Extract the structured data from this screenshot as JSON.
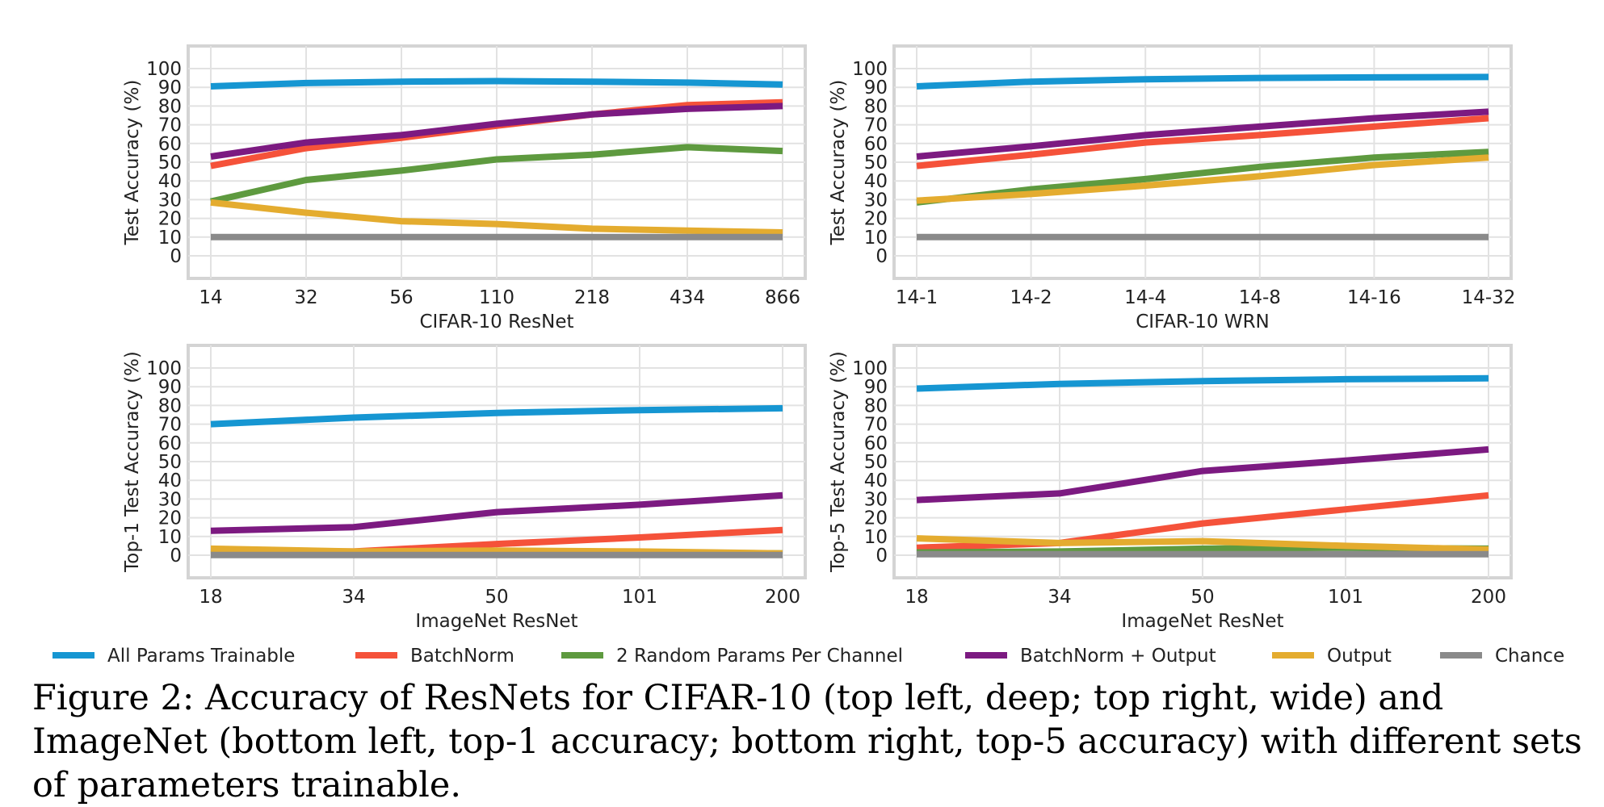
{
  "chart_data": [
    {
      "type": "line",
      "xlabel": "CIFAR-10 ResNet",
      "ylabel": "Test Accuracy (%)",
      "ylim": [
        0,
        100
      ],
      "yticks": [
        0,
        10,
        20,
        30,
        40,
        50,
        60,
        70,
        80,
        90,
        100
      ],
      "categories": [
        "14",
        "32",
        "56",
        "110",
        "218",
        "434",
        "866"
      ],
      "grid": true,
      "series": [
        {
          "name": "All Params Trainable",
          "values": [
            90.5,
            92.3,
            93.0,
            93.3,
            93.0,
            92.5,
            91.5
          ]
        },
        {
          "name": "BatchNorm",
          "values": [
            48.0,
            57.5,
            63.0,
            69.5,
            75.5,
            80.5,
            82.0
          ]
        },
        {
          "name": "2 Random Params Per Channel",
          "values": [
            29.0,
            40.5,
            45.5,
            51.5,
            54.0,
            58.0,
            56.0
          ]
        },
        {
          "name": "BatchNorm + Output",
          "values": [
            53.0,
            60.5,
            64.5,
            70.5,
            75.5,
            78.5,
            80.0
          ]
        },
        {
          "name": "Output",
          "values": [
            28.5,
            23.0,
            18.5,
            17.0,
            14.5,
            13.5,
            12.5
          ]
        },
        {
          "name": "Chance",
          "values": [
            10,
            10,
            10,
            10,
            10,
            10,
            10
          ]
        }
      ]
    },
    {
      "type": "line",
      "xlabel": "CIFAR-10 WRN",
      "ylabel": "Test Accuracy (%)",
      "ylim": [
        0,
        100
      ],
      "yticks": [
        0,
        10,
        20,
        30,
        40,
        50,
        60,
        70,
        80,
        90,
        100
      ],
      "categories": [
        "14-1",
        "14-2",
        "14-4",
        "14-8",
        "14-16",
        "14-32"
      ],
      "grid": true,
      "series": [
        {
          "name": "All Params Trainable",
          "values": [
            90.5,
            93.0,
            94.3,
            95.0,
            95.3,
            95.5
          ]
        },
        {
          "name": "BatchNorm",
          "values": [
            48.0,
            54.0,
            60.5,
            64.5,
            69.0,
            73.5
          ]
        },
        {
          "name": "2 Random Params Per Channel",
          "values": [
            28.5,
            35.5,
            41.0,
            47.5,
            52.5,
            55.5
          ]
        },
        {
          "name": "BatchNorm + Output",
          "values": [
            53.0,
            58.5,
            64.5,
            69.0,
            73.5,
            77.0
          ]
        },
        {
          "name": "Output",
          "values": [
            29.5,
            33.0,
            37.5,
            42.5,
            48.5,
            52.5
          ]
        },
        {
          "name": "Chance",
          "values": [
            10,
            10,
            10,
            10,
            10,
            10
          ]
        }
      ]
    },
    {
      "type": "line",
      "xlabel": "ImageNet ResNet",
      "ylabel": "Top-1 Test Accuracy (%)",
      "ylim": [
        0,
        100
      ],
      "yticks": [
        0,
        10,
        20,
        30,
        40,
        50,
        60,
        70,
        80,
        90,
        100
      ],
      "categories": [
        "18",
        "34",
        "50",
        "101",
        "200"
      ],
      "grid": true,
      "series": [
        {
          "name": "All Params Trainable",
          "values": [
            70.0,
            73.5,
            76.0,
            77.5,
            78.5
          ]
        },
        {
          "name": "BatchNorm",
          "values": [
            2.0,
            2.0,
            6.0,
            9.5,
            13.5
          ]
        },
        {
          "name": "2 Random Params Per Channel",
          "values": [
            0.5,
            1.0,
            1.5,
            1.5,
            1.0
          ]
        },
        {
          "name": "BatchNorm + Output",
          "values": [
            13.0,
            15.0,
            23.0,
            27.0,
            32.0
          ]
        },
        {
          "name": "Output",
          "values": [
            3.5,
            2.0,
            2.5,
            2.0,
            1.0
          ]
        },
        {
          "name": "Chance",
          "values": [
            0.1,
            0.1,
            0.1,
            0.1,
            0.1
          ]
        }
      ]
    },
    {
      "type": "line",
      "xlabel": "ImageNet ResNet",
      "ylabel": "Top-5 Test Accuracy (%)",
      "ylim": [
        0,
        100
      ],
      "yticks": [
        0,
        10,
        20,
        30,
        40,
        50,
        60,
        70,
        80,
        90,
        100
      ],
      "categories": [
        "18",
        "34",
        "50",
        "101",
        "200"
      ],
      "grid": true,
      "series": [
        {
          "name": "All Params Trainable",
          "values": [
            89.0,
            91.5,
            93.0,
            94.0,
            94.5
          ]
        },
        {
          "name": "BatchNorm",
          "values": [
            4.0,
            6.5,
            17.0,
            24.5,
            32.0
          ]
        },
        {
          "name": "2 Random Params Per Channel",
          "values": [
            1.5,
            2.0,
            3.5,
            4.0,
            3.5
          ]
        },
        {
          "name": "BatchNorm + Output",
          "values": [
            29.5,
            33.0,
            45.0,
            50.5,
            56.5
          ]
        },
        {
          "name": "Output",
          "values": [
            9.0,
            6.5,
            7.5,
            5.0,
            3.0
          ]
        },
        {
          "name": "Chance",
          "values": [
            0.5,
            0.5,
            0.5,
            0.5,
            0.5
          ]
        }
      ]
    }
  ],
  "series_colors": {
    "All Params Trainable": "#1696d2",
    "BatchNorm": "#f5523a",
    "2 Random Params Per Channel": "#5e9a3f",
    "BatchNorm + Output": "#7c1a81",
    "Output": "#e4ac2f",
    "Chance": "#8a8a8a"
  },
  "legend": {
    "placement": "bottom",
    "entries": [
      "All Params Trainable",
      "BatchNorm",
      "2 Random Params Per Channel",
      "BatchNorm + Output",
      "Output",
      "Chance"
    ]
  },
  "caption": "Figure 2: Accuracy of ResNets for CIFAR-10 (top left, deep; top right, wide) and ImageNet (bottom left, top-1 accuracy; bottom right, top-5 accuracy) with different sets of parameters trainable."
}
